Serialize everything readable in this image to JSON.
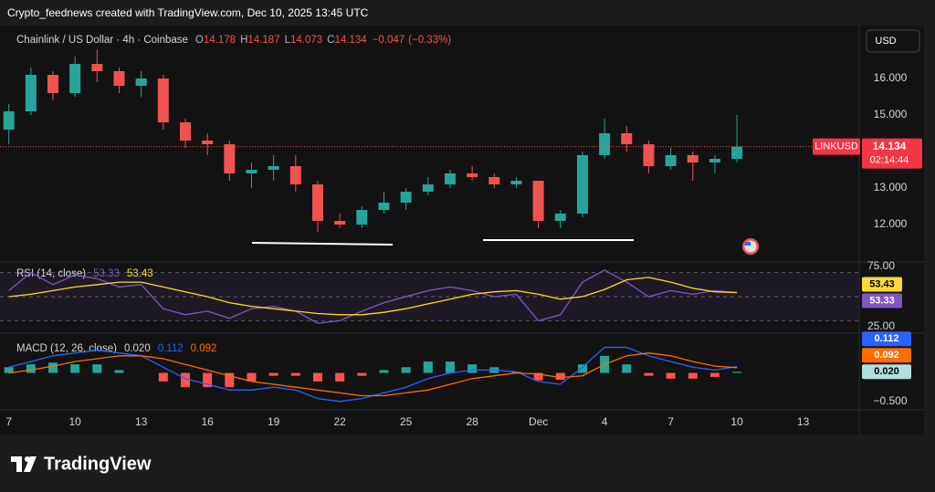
{
  "header": "Crypto_feednews created with TradingView.com, Dec 10, 2025 13:45 UTC",
  "brand": "TradingView",
  "chart_data": [
    {
      "type": "candlestick",
      "title": "Chainlink / US Dollar · 4h · Coinbase",
      "currency": "USD",
      "symbol": "LINKUSD",
      "last_price": 14.134,
      "countdown": "02:14:44",
      "ohlc": [
        {
          "key": "O",
          "value": 14.178
        },
        {
          "key": "H",
          "value": 14.187
        },
        {
          "key": "L",
          "value": 14.073
        },
        {
          "key": "C",
          "value": 14.134
        }
      ],
      "change": {
        "value": -0.047,
        "label": "−0.047"
      },
      "change_pct": {
        "value": -0.33,
        "label": "(−0.33%)"
      },
      "x": [
        0,
        1,
        2,
        3,
        4,
        5,
        6,
        7,
        8,
        9,
        10,
        11,
        12,
        13,
        14,
        15,
        16,
        17,
        18,
        19,
        20,
        21,
        22,
        23,
        24,
        25,
        26,
        27,
        28,
        29,
        30,
        31,
        32,
        33
      ],
      "xlim": [
        -0.4,
        38.5
      ],
      "xticks": [
        {
          "value": 0,
          "label": "7"
        },
        {
          "value": 3,
          "label": "10"
        },
        {
          "value": 6,
          "label": "13"
        },
        {
          "value": 9,
          "label": "16"
        },
        {
          "value": 12,
          "label": "19"
        },
        {
          "value": 15,
          "label": "22"
        },
        {
          "value": 18,
          "label": "25"
        },
        {
          "value": 21,
          "label": "28"
        },
        {
          "value": 24,
          "label": "Dec"
        },
        {
          "value": 27,
          "label": "4"
        },
        {
          "value": 30,
          "label": "7"
        },
        {
          "value": 33,
          "label": "10"
        },
        {
          "value": 36,
          "label": "13"
        }
      ],
      "open": [
        14.6,
        15.1,
        16.1,
        15.6,
        16.4,
        16.2,
        15.8,
        16.0,
        14.8,
        14.3,
        14.2,
        13.4,
        13.5,
        13.6,
        13.1,
        12.1,
        12.0,
        12.4,
        12.6,
        12.9,
        13.1,
        13.4,
        13.3,
        13.1,
        13.2,
        12.1,
        12.3,
        13.9,
        14.5,
        14.2,
        13.6,
        13.9,
        13.7,
        13.8
      ],
      "high": [
        15.3,
        16.3,
        16.2,
        16.6,
        16.8,
        16.3,
        16.2,
        16.1,
        14.9,
        14.5,
        14.3,
        13.7,
        13.9,
        13.9,
        13.2,
        12.3,
        12.5,
        12.9,
        13.0,
        13.3,
        13.5,
        13.6,
        13.4,
        13.3,
        13.2,
        12.4,
        14.0,
        14.9,
        14.7,
        14.3,
        14.1,
        14.0,
        13.9,
        15.0
      ],
      "low": [
        14.2,
        15.0,
        15.4,
        15.5,
        15.9,
        15.6,
        15.5,
        14.6,
        14.1,
        13.9,
        13.2,
        13.0,
        13.2,
        12.9,
        11.8,
        11.9,
        11.9,
        12.3,
        12.4,
        12.8,
        13.0,
        13.2,
        13.0,
        13.0,
        11.9,
        11.9,
        12.2,
        13.8,
        14.0,
        13.4,
        13.5,
        13.2,
        13.4,
        13.7
      ],
      "close": [
        15.1,
        16.1,
        15.6,
        16.4,
        16.2,
        15.8,
        16.0,
        14.8,
        14.3,
        14.2,
        13.4,
        13.5,
        13.6,
        13.1,
        12.1,
        12.0,
        12.4,
        12.6,
        12.9,
        13.1,
        13.4,
        13.3,
        13.1,
        13.2,
        12.1,
        12.3,
        13.9,
        14.5,
        14.2,
        13.6,
        13.9,
        13.7,
        13.8,
        14.134
      ],
      "up_color": "#26a69a",
      "down_color": "#ef5350",
      "ylim": [
        11.025,
        17.4
      ],
      "yticks": [
        {
          "value": 12,
          "label": "12.000"
        },
        {
          "value": 13,
          "label": "13.000"
        },
        {
          "value": 15,
          "label": "15.000"
        },
        {
          "value": 16,
          "label": "16.000"
        }
      ]
    },
    {
      "type": "line",
      "title": "RSI (14, close)",
      "ylim": [
        20.5,
        78
      ],
      "yticks": [
        {
          "value": 25,
          "label": "25.00"
        },
        {
          "value": 75,
          "label": "75.00"
        }
      ],
      "band": [
        30,
        70
      ],
      "midline": 50,
      "band_color": "#7e57c2",
      "series": [
        {
          "color": "#7e57c2",
          "values": [
            55,
            70,
            60,
            68,
            65,
            58,
            60,
            40,
            35,
            38,
            32,
            40,
            42,
            38,
            28,
            30,
            38,
            45,
            50,
            55,
            58,
            55,
            50,
            52,
            30,
            35,
            62,
            72,
            62,
            50,
            55,
            52,
            55,
            53.33
          ]
        },
        {
          "color": "#fdd835",
          "values": [
            50,
            52,
            55,
            58,
            60,
            62,
            62,
            58,
            54,
            50,
            45,
            42,
            40,
            38,
            36,
            35,
            35,
            37,
            40,
            44,
            48,
            52,
            54,
            55,
            52,
            48,
            50,
            56,
            64,
            66,
            62,
            57,
            54,
            53.43
          ]
        }
      ]
    },
    {
      "type": "macd",
      "title": "MACD (12, 26, close)",
      "ylim": [
        -0.6,
        0.65
      ],
      "yticks": [
        {
          "value": -0.5,
          "label": "−0.500"
        }
      ],
      "series": [
        {
          "type": "histogram",
          "positive_color": "#26a69a",
          "negative_color": "#ff5252",
          "last_label": "0.020",
          "values": [
            0.1,
            0.15,
            0.18,
            0.15,
            0.15,
            0.05,
            0,
            -0.15,
            -0.25,
            -0.25,
            -0.25,
            -0.15,
            -0.05,
            -0.05,
            -0.15,
            -0.15,
            -0.05,
            0.05,
            0.1,
            0.2,
            0.2,
            0.15,
            0.1,
            0.02,
            -0.13,
            -0.12,
            0.15,
            0.3,
            0.15,
            -0.05,
            -0.1,
            -0.1,
            -0.07,
            0.02
          ]
        },
        {
          "color": "#2962ff",
          "values": [
            0.1,
            0.2,
            0.3,
            0.35,
            0.4,
            0.35,
            0.3,
            0.1,
            -0.1,
            -0.2,
            -0.3,
            -0.3,
            -0.25,
            -0.3,
            -0.45,
            -0.5,
            -0.45,
            -0.35,
            -0.25,
            -0.1,
            0.0,
            0.05,
            0.05,
            0.02,
            -0.15,
            -0.2,
            0.1,
            0.45,
            0.45,
            0.3,
            0.2,
            0.1,
            0.05,
            0.112
          ]
        },
        {
          "color": "#ff6d00",
          "values": [
            0.0,
            0.05,
            0.12,
            0.2,
            0.25,
            0.3,
            0.3,
            0.25,
            0.15,
            0.05,
            -0.05,
            -0.15,
            -0.2,
            -0.25,
            -0.3,
            -0.35,
            -0.4,
            -0.4,
            -0.35,
            -0.3,
            -0.2,
            -0.1,
            -0.05,
            0.0,
            -0.02,
            -0.08,
            -0.05,
            0.15,
            0.3,
            0.35,
            0.3,
            0.2,
            0.12,
            0.092
          ]
        }
      ]
    }
  ]
}
